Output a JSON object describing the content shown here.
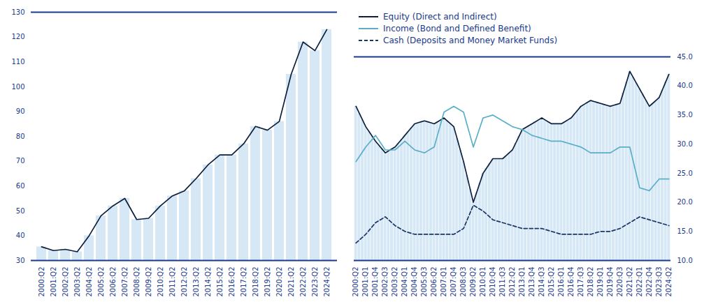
{
  "chart_data": [
    {
      "type": "bar",
      "categories": [
        "2000:Q2",
        "2001:Q2",
        "2002:Q2",
        "2003:Q2",
        "2004:Q2",
        "2005:Q2",
        "2006:Q2",
        "2007:Q2",
        "2008:Q2",
        "2009:Q2",
        "2010:Q2",
        "2011:Q2",
        "2012:Q2",
        "2013:Q2",
        "2014:Q2",
        "2015:Q2",
        "2016:Q2",
        "2017:Q2",
        "2018:Q2",
        "2019:Q2",
        "2020:Q2",
        "2021:Q2",
        "2022:Q2",
        "2023:Q2",
        "2024:Q2"
      ],
      "series": [
        {
          "type": "bar",
          "color": "#d6e8f5",
          "values": [
            35.5,
            34.0,
            34.5,
            33.5,
            40.0,
            48.0,
            52.0,
            55.0,
            46.5,
            47.0,
            52.0,
            56.0,
            58.0,
            63.0,
            68.5,
            72.5,
            72.5,
            77.0,
            84.0,
            82.5,
            86.0,
            105.0,
            118.0,
            114.5,
            123.0
          ]
        },
        {
          "type": "line",
          "color": "#0d1f3c",
          "values": [
            35.5,
            34.0,
            34.5,
            33.5,
            40.0,
            48.0,
            52.0,
            55.0,
            46.5,
            47.0,
            52.0,
            56.0,
            58.0,
            63.0,
            68.5,
            72.5,
            72.5,
            77.0,
            84.0,
            82.5,
            86.0,
            105.0,
            118.0,
            114.5,
            123.0
          ]
        }
      ],
      "ylim": [
        30,
        130
      ],
      "yticks": [
        30,
        40,
        50,
        60,
        70,
        80,
        90,
        100,
        110,
        120,
        130
      ],
      "grid": false
    },
    {
      "type": "bar",
      "categories": [
        "2000:Q2",
        null,
        null,
        "2001:Q1",
        null,
        null,
        "2001:Q4",
        null,
        null,
        "2002:Q3",
        null,
        null,
        "2003:Q2",
        null,
        null,
        "2004:Q1",
        null,
        null,
        "2004:Q4",
        null,
        null,
        "2005:Q3",
        null,
        null,
        "2006:Q2",
        null,
        null,
        "2007:Q1",
        null,
        null,
        "2007:Q4",
        null,
        null,
        "2008:Q3",
        null,
        null,
        "2009:Q2",
        null,
        null,
        "2010:Q1",
        null,
        null,
        "2010:Q4",
        null,
        null,
        "2011:Q3",
        null,
        null,
        "2012:Q2",
        null,
        null,
        "2013:Q1",
        null,
        null,
        "2013:Q4",
        null,
        null,
        "2014:Q3",
        null,
        null,
        "2015:Q2",
        null,
        null,
        "2016:Q1",
        null,
        null,
        "2016:Q4",
        null,
        null,
        "2017:Q3",
        null,
        null,
        "2018:Q2",
        null,
        null,
        "2019:Q1",
        null,
        null,
        "2019:Q4",
        null,
        null,
        "2020:Q3",
        null,
        null,
        "2021:Q2",
        null,
        null,
        "2022:Q1",
        null,
        null,
        "2022:Q4",
        null,
        null,
        "2023:Q3",
        null,
        null,
        "2024:Q2"
      ],
      "series": [
        {
          "type": "bar",
          "color": "#d6e8f5",
          "values": [
            36.5,
            35.3333,
            34.1667,
            33.0,
            32.1667,
            31.3333,
            30.5,
            29.8333,
            29.1667,
            28.5,
            28.8333,
            29.1667,
            29.5,
            30.1667,
            30.8333,
            31.5,
            32.1667,
            32.8333,
            33.5,
            33.6667,
            33.8333,
            34.0,
            33.8333,
            33.6667,
            33.5,
            33.8333,
            34.1667,
            34.5,
            34.0,
            33.5,
            33.0,
            31.0,
            29.0,
            27.0,
            24.6667,
            22.3333,
            20.0,
            21.6667,
            23.3333,
            25.0,
            25.8333,
            26.6667,
            27.5,
            27.5,
            27.5,
            27.5,
            28.0,
            28.5,
            29.0,
            30.1667,
            31.3333,
            32.5,
            32.8333,
            33.1667,
            33.5,
            33.8333,
            34.1667,
            34.5,
            34.1667,
            33.8333,
            33.5,
            33.5,
            33.5,
            33.5,
            33.8333,
            34.1667,
            34.5,
            35.1667,
            35.8333,
            36.5,
            36.8333,
            37.1667,
            37.5,
            37.3333,
            37.1667,
            37.0,
            36.8333,
            36.6667,
            36.5,
            36.6667,
            36.8333,
            37.0,
            38.8333,
            40.6667,
            42.5,
            41.5,
            40.5,
            39.5,
            38.5,
            37.5,
            36.5,
            37.0,
            37.5,
            38.0,
            39.3333,
            40.6667,
            42.0
          ]
        },
        {
          "type": "line",
          "name": "Equity (Direct and Indirect)",
          "color": "#0d1f3c",
          "line_style": "solid",
          "values": [
            36.5,
            35.3333,
            34.1667,
            33.0,
            32.1667,
            31.3333,
            30.5,
            29.8333,
            29.1667,
            28.5,
            28.8333,
            29.1667,
            29.5,
            30.1667,
            30.8333,
            31.5,
            32.1667,
            32.8333,
            33.5,
            33.6667,
            33.8333,
            34.0,
            33.8333,
            33.6667,
            33.5,
            33.8333,
            34.1667,
            34.5,
            34.0,
            33.5,
            33.0,
            31.0,
            29.0,
            27.0,
            24.6667,
            22.3333,
            20.0,
            21.6667,
            23.3333,
            25.0,
            25.8333,
            26.6667,
            27.5,
            27.5,
            27.5,
            27.5,
            28.0,
            28.5,
            29.0,
            30.1667,
            31.3333,
            32.5,
            32.8333,
            33.1667,
            33.5,
            33.8333,
            34.1667,
            34.5,
            34.1667,
            33.8333,
            33.5,
            33.5,
            33.5,
            33.5,
            33.8333,
            34.1667,
            34.5,
            35.1667,
            35.8333,
            36.5,
            36.8333,
            37.1667,
            37.5,
            37.3333,
            37.1667,
            37.0,
            36.8333,
            36.6667,
            36.5,
            36.6667,
            36.8333,
            37.0,
            38.8333,
            40.6667,
            42.5,
            41.5,
            40.5,
            39.5,
            38.5,
            37.5,
            36.5,
            37.0,
            37.5,
            38.0,
            39.3333,
            40.6667,
            42.0
          ]
        },
        {
          "type": "line",
          "name": "Income (Bond and Defined Benefit)",
          "color": "#5aafc7",
          "line_style": "solid",
          "values": [
            27.0,
            27.8333,
            28.6667,
            29.5,
            30.1667,
            30.8333,
            31.5,
            30.6667,
            29.8333,
            29.0,
            29.0,
            29.0,
            29.0,
            29.5,
            30.0,
            30.5,
            30.0,
            29.5,
            29.0,
            28.8333,
            28.6667,
            28.5,
            28.8333,
            29.1667,
            29.5,
            31.5,
            33.5,
            35.5,
            35.8333,
            36.1667,
            36.5,
            36.1667,
            35.8333,
            35.5,
            33.5,
            31.5,
            29.5,
            31.1667,
            32.8333,
            34.5,
            34.6667,
            34.8333,
            35.0,
            34.6667,
            34.3333,
            34.0,
            33.6667,
            33.3333,
            33.0,
            32.8333,
            32.6667,
            32.5,
            32.1667,
            31.8333,
            31.5,
            31.3333,
            31.1667,
            31.0,
            30.8333,
            30.6667,
            30.5,
            30.5,
            30.5,
            30.5,
            30.3333,
            30.1667,
            30.0,
            29.8333,
            29.6667,
            29.5,
            29.1667,
            28.8333,
            28.5,
            28.5,
            28.5,
            28.5,
            28.5,
            28.5,
            28.5,
            28.8333,
            29.1667,
            29.5,
            29.5,
            29.5,
            29.5,
            27.1667,
            24.8333,
            22.5,
            22.3333,
            22.1667,
            22.0,
            22.6667,
            23.3333,
            24.0,
            24.0,
            24.0,
            24.0
          ]
        },
        {
          "type": "line",
          "name": "Cash (Deposits and Money Market Funds)",
          "color": "#1a3566",
          "line_style": "dashed",
          "values": [
            13.0,
            13.5,
            14.0,
            14.5,
            15.1667,
            15.8333,
            16.5,
            16.8333,
            17.1667,
            17.5,
            17.0,
            16.5,
            16.0,
            15.6667,
            15.3333,
            15.0,
            14.8333,
            14.6667,
            14.5,
            14.5,
            14.5,
            14.5,
            14.5,
            14.5,
            14.5,
            14.5,
            14.5,
            14.5,
            14.5,
            14.5,
            14.5,
            14.8333,
            15.1667,
            15.5,
            16.8333,
            18.1667,
            19.5,
            19.1667,
            18.8333,
            18.5,
            18.0,
            17.5,
            17.0,
            16.8333,
            16.6667,
            16.5,
            16.3333,
            16.1667,
            16.0,
            15.8333,
            15.6667,
            15.5,
            15.5,
            15.5,
            15.5,
            15.5,
            15.5,
            15.5,
            15.3333,
            15.1667,
            15.0,
            14.8333,
            14.6667,
            14.5,
            14.5,
            14.5,
            14.5,
            14.5,
            14.5,
            14.5,
            14.5,
            14.5,
            14.5,
            14.6667,
            14.8333,
            15.0,
            15.0,
            15.0,
            15.0,
            15.1667,
            15.3333,
            15.5,
            15.8333,
            16.1667,
            16.5,
            16.8333,
            17.1667,
            17.5,
            17.3333,
            17.1667,
            17.0,
            16.8333,
            16.6667,
            16.5,
            16.3333,
            16.1667,
            16.0
          ]
        }
      ],
      "ylim": [
        10,
        45
      ],
      "yticks": [
        {
          "value": 10.0,
          "label": "10.0"
        },
        {
          "value": 15.0,
          "label": "15.0"
        },
        {
          "value": 20.0,
          "label": "20.0"
        },
        {
          "value": 25.0,
          "label": "25.0"
        },
        {
          "value": 30.0,
          "label": "30.0"
        },
        {
          "value": 35.0,
          "label": "35.0"
        },
        {
          "value": 40.0,
          "label": "40.0"
        },
        {
          "value": 45.0,
          "label": "45.0"
        }
      ],
      "legend": "upper left",
      "grid": false
    }
  ]
}
